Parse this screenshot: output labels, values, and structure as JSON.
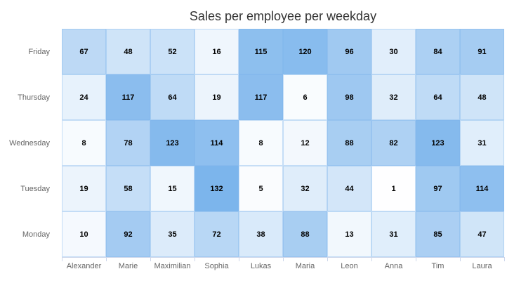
{
  "chart_data": {
    "type": "heatmap",
    "title": "Sales per employee per weekday",
    "x_categories": [
      "Alexander",
      "Marie",
      "Maximilian",
      "Sophia",
      "Lukas",
      "Maria",
      "Leon",
      "Anna",
      "Tim",
      "Laura"
    ],
    "y_categories_top_to_bottom": [
      "Friday",
      "Thursday",
      "Wednesday",
      "Tuesday",
      "Monday"
    ],
    "rows": [
      {
        "label": "Friday",
        "values": [
          67,
          48,
          52,
          16,
          115,
          120,
          96,
          30,
          84,
          91
        ]
      },
      {
        "label": "Thursday",
        "values": [
          24,
          117,
          64,
          19,
          117,
          6,
          98,
          32,
          64,
          48
        ]
      },
      {
        "label": "Wednesday",
        "values": [
          8,
          78,
          123,
          114,
          8,
          12,
          88,
          82,
          123,
          31
        ]
      },
      {
        "label": "Tuesday",
        "values": [
          19,
          58,
          15,
          132,
          5,
          32,
          44,
          1,
          97,
          114
        ]
      },
      {
        "label": "Monday",
        "values": [
          10,
          92,
          35,
          72,
          38,
          88,
          13,
          31,
          85,
          47
        ]
      }
    ],
    "color_axis": {
      "min": 0,
      "max": 132,
      "min_color": "#ffffff",
      "max_color": "#7cb5ec"
    },
    "legend": "off",
    "grid": "off",
    "colors": {
      "title": "#333333",
      "axis_labels": "#666666",
      "axis_line": "#ccd6eb",
      "data_labels": "#000000"
    }
  }
}
